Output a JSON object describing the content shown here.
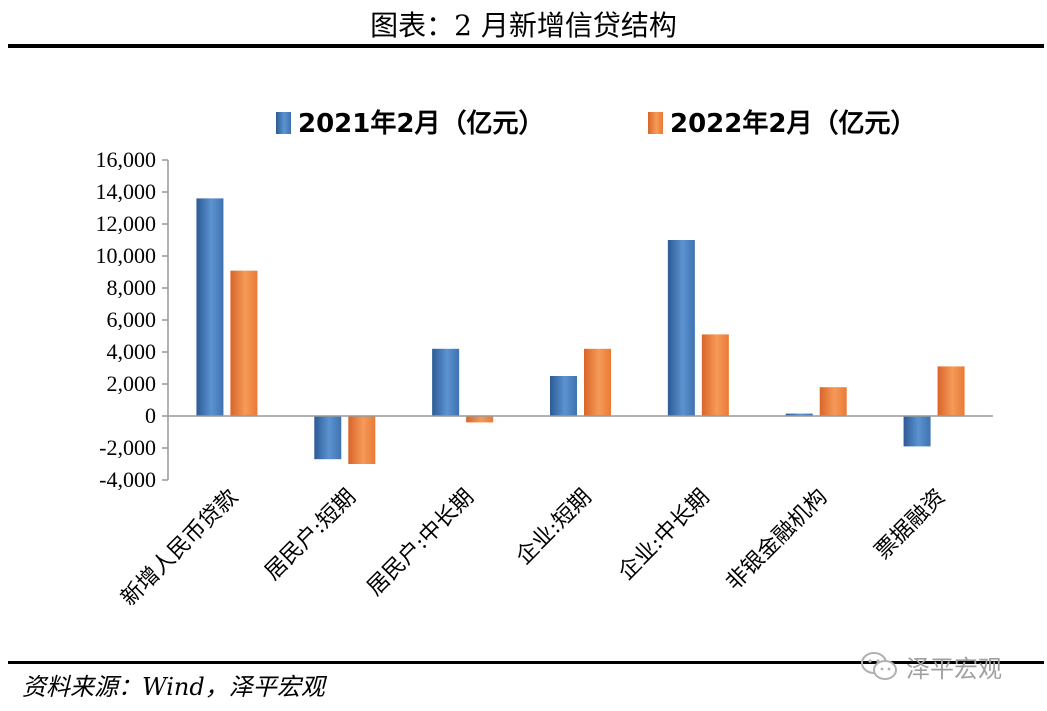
{
  "title": "图表：2 月新增信贷结构",
  "source": "资料来源：Wind，泽平宏观",
  "watermark": "泽平宏观",
  "watermark_icon": "wechat-icon",
  "colors": {
    "series1": "#3f72b0",
    "series2": "#f0813a"
  },
  "chart_data": {
    "type": "bar",
    "categories": [
      "新增人民币贷款",
      "居民户:短期",
      "居民户:中长期",
      "企业:短期",
      "企业:中长期",
      "非银金融机构",
      "票据融资"
    ],
    "series": [
      {
        "name": "2021年2月（亿元）",
        "values": [
          13600,
          -2700,
          4200,
          2500,
          11000,
          150,
          -1900
        ]
      },
      {
        "name": "2022年2月（亿元）",
        "values": [
          9084,
          -3000,
          -400,
          4200,
          5100,
          1800,
          3100
        ]
      }
    ],
    "ylim": [
      -4000,
      16000
    ],
    "yticks": [
      16000,
      14000,
      12000,
      10000,
      8000,
      6000,
      4000,
      2000,
      0,
      -2000,
      -4000
    ],
    "ytick_labels": [
      "16,000",
      "14,000",
      "12,000",
      "10,000",
      "8,000",
      "6,000",
      "4,000",
      "2,000",
      "0",
      "-2,000",
      "-4,000"
    ],
    "legend_position": "top-center",
    "grid": false
  }
}
